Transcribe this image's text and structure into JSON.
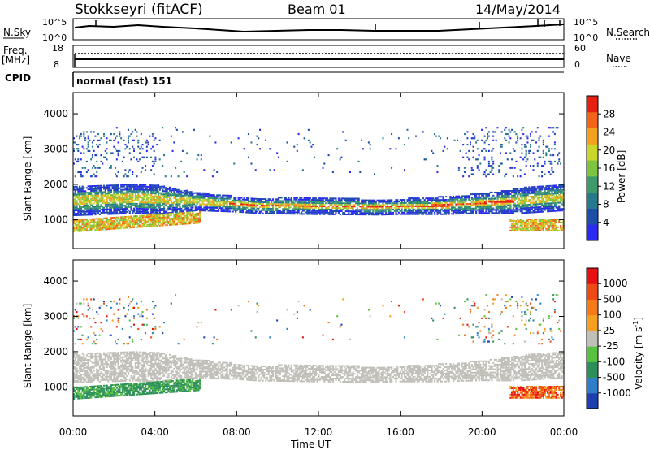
{
  "header": {
    "station": "Stokkseyri (fitACF)",
    "beam": "Beam 01",
    "date": "14/May/2014"
  },
  "noise_panel": {
    "left_label": "N.Sky",
    "right_label": "N.Search",
    "left_ticks": [
      "10^5",
      "10^0"
    ],
    "right_ticks": [
      "10^5",
      "10^0"
    ]
  },
  "freq_panel": {
    "label_line1": "Freq.",
    "label_line2": "[MHz]",
    "left_ticks": [
      "18",
      "8"
    ],
    "right_label": "Nave",
    "right_ticks": [
      "60",
      "0"
    ]
  },
  "cpid_panel": {
    "label": "CPID",
    "text": "normal (fast) 151"
  },
  "chart_data": [
    {
      "type": "heatmap",
      "name": "power",
      "ylabel": "Slant Range [km]",
      "ylim": [
        180,
        4600
      ],
      "y_ticks": [
        1000,
        2000,
        3000,
        4000
      ],
      "xlim_hours": [
        0,
        24
      ],
      "colorbar": {
        "label": "Power [dB]",
        "ticks": [
          "28",
          "24",
          "20",
          "16",
          "12",
          "8",
          "4"
        ],
        "colors": [
          "#2a2af0",
          "#1e4fa8",
          "#277a8c",
          "#3d9a6a",
          "#7dc440",
          "#c9d62c",
          "#f2a21e",
          "#f26418",
          "#e62010"
        ]
      }
    },
    {
      "type": "heatmap",
      "name": "velocity",
      "ylabel": "Slant Range [km]",
      "ylim": [
        180,
        4600
      ],
      "y_ticks": [
        1000,
        2000,
        3000,
        4000
      ],
      "xlim_hours": [
        0,
        24
      ],
      "xlabel": "Time UT",
      "x_ticks": [
        "00:00",
        "04:00",
        "08:00",
        "12:00",
        "16:00",
        "20:00",
        "00:00"
      ],
      "colorbar": {
        "label": "Velocity [m s",
        "label_sup": "-1",
        "label_close": "]",
        "ticks": [
          "1000",
          "500",
          "100",
          "25",
          "-25",
          "-100",
          "-500",
          "-1000"
        ],
        "colors": [
          "#1d3fb0",
          "#2f7fc8",
          "#2f8f5a",
          "#56c240",
          "#c0bfb8",
          "#f5a020",
          "#f57a18",
          "#f04a14",
          "#e61010"
        ]
      }
    }
  ]
}
